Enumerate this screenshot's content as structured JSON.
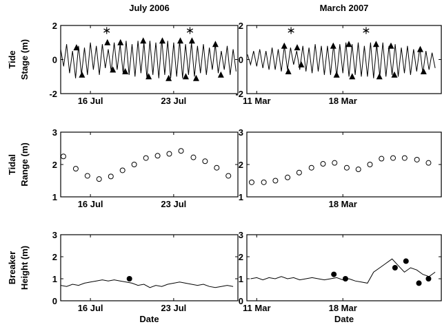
{
  "chart_data": [
    {
      "type": "line",
      "title": "July 2006",
      "ylabel": [
        "Tide",
        "Stage (m)"
      ],
      "xlim": [
        13.5,
        28.4
      ],
      "xticks": [
        {
          "value": 16,
          "label": "16 Jul"
        },
        {
          "value": 23,
          "label": "23 Jul"
        }
      ],
      "ylim": [
        -2,
        2
      ],
      "yticks": [
        -2,
        0,
        2
      ],
      "series": [
        {
          "style": "line",
          "color": "#000000",
          "x": [
            13.5,
            13.75,
            14,
            14.25,
            14.5,
            14.75,
            15,
            15.25,
            15.5,
            15.75,
            16,
            16.25,
            16.5,
            16.75,
            17,
            17.25,
            17.5,
            17.75,
            18,
            18.25,
            18.5,
            18.75,
            19,
            19.25,
            19.5,
            19.75,
            20,
            20.25,
            20.5,
            20.75,
            21,
            21.25,
            21.5,
            21.75,
            22,
            22.25,
            22.5,
            22.75,
            23,
            23.25,
            23.5,
            23.75,
            24,
            24.25,
            24.5,
            24.75,
            25,
            25.25,
            25.5,
            25.75,
            26,
            26.25,
            26.5,
            26.75,
            27,
            27.25,
            27.5,
            27.75,
            28,
            28.25
          ],
          "values": [
            0.6,
            -0.4,
            0.9,
            -0.8,
            0.5,
            -1.1,
            0.8,
            -0.9,
            0.7,
            -0.9,
            1.0,
            -0.6,
            0.8,
            -0.9,
            0.9,
            -0.5,
            0.6,
            -0.7,
            1.0,
            -0.6,
            0.9,
            -0.8,
            1.1,
            -0.9,
            0.9,
            -1.0,
            1.1,
            -0.8,
            1.0,
            -1.1,
            1.1,
            -0.9,
            1.0,
            -1.1,
            1.2,
            -0.9,
            1.1,
            -1.1,
            1.0,
            -1.0,
            1.1,
            -1.1,
            0.9,
            -0.9,
            1.0,
            -1.0,
            0.8,
            -0.8,
            0.9,
            -0.9,
            0.7,
            -0.6,
            0.9,
            -0.8,
            0.5,
            -0.6,
            0.8,
            -0.9,
            0.6,
            -0.7
          ]
        },
        {
          "style": "triangle",
          "color": "#000000",
          "x": [
            14.83,
            15.29,
            17.43,
            17.89,
            18.53,
            18.93,
            20.44,
            20.9,
            22.05,
            22.58,
            23.56,
            24.02,
            24.54,
            24.89,
            26.51,
            26.97
          ],
          "values": [
            0.7,
            -0.9,
            1.0,
            -0.6,
            1.0,
            -0.7,
            1.1,
            -1.0,
            1.1,
            -1.1,
            1.1,
            -1.0,
            1.1,
            -1.1,
            0.9,
            -0.9
          ]
        },
        {
          "style": "asterisk",
          "color": "#000000",
          "x": [
            17.37,
            24.37
          ],
          "values": [
            1.7,
            1.7
          ]
        }
      ]
    },
    {
      "type": "line",
      "title": "March 2007",
      "xlim": [
        10.2,
        26
      ],
      "xticks": [
        {
          "value": 11,
          "label": "11 Mar"
        },
        {
          "value": 18,
          "label": "18 Mar"
        }
      ],
      "ylim": [
        -2,
        2
      ],
      "yticks": [
        -2,
        0,
        2
      ],
      "series": [
        {
          "style": "line",
          "color": "#000000",
          "x": [
            10.25,
            10.5,
            10.75,
            11,
            11.25,
            11.5,
            11.75,
            12,
            12.25,
            12.5,
            12.75,
            13,
            13.25,
            13.5,
            13.75,
            14,
            14.25,
            14.5,
            14.75,
            15,
            15.25,
            15.5,
            15.75,
            16,
            16.25,
            16.5,
            16.75,
            17,
            17.25,
            17.5,
            17.75,
            18,
            18.25,
            18.5,
            18.75,
            19,
            19.25,
            19.5,
            19.75,
            20,
            20.25,
            20.5,
            20.75,
            21,
            21.25,
            21.5,
            21.75,
            22,
            22.25,
            22.5,
            22.75,
            23,
            23.25,
            23.5,
            23.75,
            24,
            24.25,
            24.5,
            24.75,
            25,
            25.25,
            25.5
          ],
          "values": [
            0.3,
            -0.3,
            0.5,
            -0.4,
            0.6,
            -0.5,
            0.5,
            -0.6,
            0.7,
            -0.6,
            0.6,
            -0.7,
            0.8,
            -0.6,
            0.7,
            -0.3,
            0.5,
            -0.6,
            0.8,
            -0.7,
            0.7,
            -0.8,
            0.9,
            -0.7,
            0.8,
            -0.9,
            0.8,
            -0.9,
            0.9,
            -1.0,
            0.9,
            -0.8,
            1.0,
            -1.0,
            0.9,
            -0.9,
            1.0,
            -1.0,
            0.8,
            -1.0,
            1.0,
            -1.1,
            0.9,
            -1.0,
            1.0,
            -1.0,
            0.8,
            -0.9,
            0.9,
            -1.0,
            0.7,
            -0.8,
            0.8,
            -0.9,
            0.6,
            -0.7,
            0.7,
            -0.8,
            0.5,
            -0.6,
            0.4,
            -0.5
          ]
        },
        {
          "style": "triangle",
          "color": "#000000",
          "x": [
            13.24,
            13.57,
            14.29,
            14.62,
            17.22,
            17.49,
            18.49,
            18.76,
            20.7,
            20.97,
            21.91,
            22.19,
            24.29,
            24.56
          ],
          "values": [
            0.8,
            -0.7,
            0.7,
            -0.3,
            0.8,
            -0.9,
            0.9,
            -1.0,
            0.9,
            -1.0,
            0.8,
            -0.9,
            0.6,
            -0.7
          ]
        },
        {
          "style": "asterisk",
          "color": "#000000",
          "x": [
            13.79,
            19.89
          ],
          "values": [
            1.7,
            1.7
          ]
        }
      ]
    },
    {
      "type": "scatter",
      "ylabel": [
        "Tidal",
        "Range (m)"
      ],
      "xlim": [
        13.5,
        28.4
      ],
      "xticks": [
        {
          "value": 16,
          "label": "16 Jul"
        },
        {
          "value": 23,
          "label": "23 Jul"
        }
      ],
      "ylim": [
        1,
        3
      ],
      "yticks": [
        1,
        2,
        3
      ],
      "series": [
        {
          "style": "open-circle",
          "color": "#000000",
          "x": [
            13.73,
            14.77,
            15.75,
            16.73,
            17.72,
            18.7,
            19.68,
            20.67,
            21.65,
            22.63,
            23.62,
            24.66,
            25.64,
            26.62,
            27.6
          ],
          "values": [
            2.25,
            1.87,
            1.65,
            1.55,
            1.63,
            1.82,
            2.0,
            2.2,
            2.27,
            2.33,
            2.42,
            2.22,
            2.1,
            1.9,
            1.65
          ]
        }
      ]
    },
    {
      "type": "scatter",
      "xlim": [
        10.2,
        26
      ],
      "xticks": [
        {
          "value": 18,
          "label": "18 Mar"
        }
      ],
      "ylim": [
        1,
        3
      ],
      "yticks": [
        1,
        2,
        3
      ],
      "series": [
        {
          "style": "open-circle",
          "color": "#000000",
          "x": [
            10.59,
            11.58,
            12.52,
            13.51,
            14.45,
            15.45,
            16.39,
            17.33,
            18.32,
            19.26,
            20.2,
            21.14,
            22.08,
            23.02,
            24.02,
            24.96
          ],
          "values": [
            1.45,
            1.45,
            1.5,
            1.6,
            1.75,
            1.9,
            2.02,
            2.05,
            1.9,
            1.85,
            2.0,
            2.18,
            2.2,
            2.2,
            2.15,
            2.05
          ]
        }
      ]
    },
    {
      "type": "line",
      "ylabel": [
        "Breaker",
        "Height (m)"
      ],
      "xlabel": "Date",
      "xlim": [
        13.5,
        28.4
      ],
      "xticks": [
        {
          "value": 16,
          "label": "16 Jul"
        },
        {
          "value": 23,
          "label": "23 Jul"
        }
      ],
      "ylim": [
        0,
        3
      ],
      "yticks": [
        0,
        1,
        2,
        3
      ],
      "series": [
        {
          "style": "line",
          "color": "#000000",
          "x": [
            13.5,
            14,
            14.5,
            15,
            15.5,
            16,
            16.5,
            17,
            17.5,
            18,
            18.5,
            19,
            19.5,
            20,
            20.5,
            21,
            21.5,
            22,
            22.5,
            23,
            23.5,
            24,
            24.5,
            25,
            25.5,
            26,
            26.5,
            27,
            27.5,
            28
          ],
          "values": [
            0.7,
            0.65,
            0.75,
            0.7,
            0.8,
            0.85,
            0.9,
            0.95,
            0.9,
            0.95,
            0.9,
            0.85,
            0.8,
            0.7,
            0.75,
            0.6,
            0.7,
            0.65,
            0.75,
            0.8,
            0.85,
            0.8,
            0.75,
            0.7,
            0.75,
            0.65,
            0.6,
            0.65,
            0.7,
            0.65
          ]
        },
        {
          "style": "filled-circle",
          "color": "#000000",
          "x": [
            19.28
          ],
          "values": [
            1.0
          ]
        }
      ]
    },
    {
      "type": "line",
      "xlabel": "Date",
      "xlim": [
        10.2,
        26
      ],
      "xticks": [
        {
          "value": 11,
          "label": "11 Mar"
        },
        {
          "value": 18,
          "label": "18 Mar"
        }
      ],
      "ylim": [
        0,
        3
      ],
      "yticks": [
        0,
        1,
        2,
        3
      ],
      "series": [
        {
          "style": "line",
          "color": "#000000",
          "x": [
            10.5,
            11,
            11.5,
            12,
            12.5,
            13,
            13.5,
            14,
            14.5,
            15,
            15.5,
            16,
            16.5,
            17,
            17.5,
            18,
            18.5,
            19,
            19.5,
            20,
            20.5,
            21,
            21.5,
            22,
            22.5,
            23,
            23.5,
            24,
            24.5,
            25,
            25.5
          ],
          "values": [
            1.0,
            1.05,
            0.95,
            1.05,
            1.0,
            1.1,
            1.0,
            1.05,
            0.95,
            1.0,
            1.05,
            1.0,
            0.95,
            1.0,
            1.05,
            0.95,
            1.0,
            0.9,
            0.85,
            0.8,
            1.3,
            1.5,
            1.7,
            1.9,
            1.6,
            1.3,
            1.5,
            1.4,
            1.2,
            1.1,
            1.3
          ]
        },
        {
          "style": "filled-circle",
          "color": "#000000",
          "x": [
            17.27,
            18.21,
            22.24,
            23.13,
            24.18,
            24.96
          ],
          "values": [
            1.2,
            1.0,
            1.5,
            1.8,
            0.8,
            1.0
          ]
        }
      ]
    }
  ]
}
